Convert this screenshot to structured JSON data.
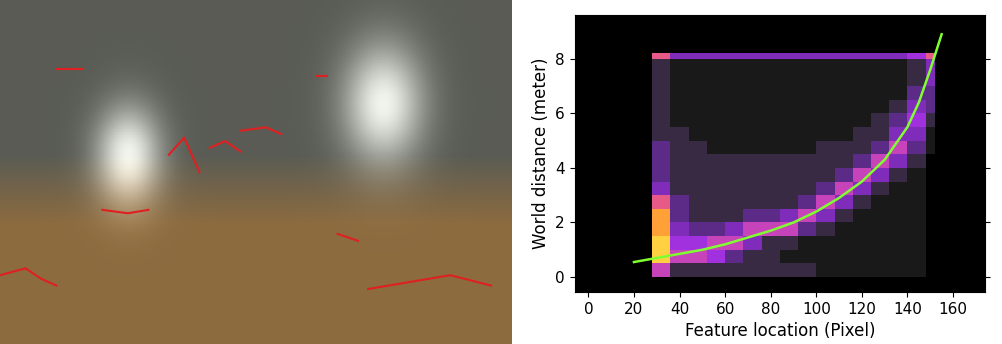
{
  "chart_data": {
    "type": "heatmap",
    "xlabel": "Feature location (Pixel)",
    "ylabel": "World distance (meter)",
    "xlim": [
      -6,
      174
    ],
    "ylim": [
      -0.55,
      9.6
    ],
    "xticks": [
      0,
      20,
      40,
      60,
      80,
      100,
      120,
      140,
      160
    ],
    "yticks": [
      0,
      2,
      4,
      6,
      8
    ],
    "x_edges": [
      28,
      36,
      44,
      52,
      60,
      68,
      76,
      84,
      92,
      100,
      108,
      116,
      124,
      132,
      140,
      148,
      152
    ],
    "y_edges": [
      0,
      0.5,
      1,
      1.5,
      2,
      2.5,
      3,
      3.5,
      4,
      4.5,
      5,
      5.5,
      6,
      6.5,
      7,
      7.5,
      8,
      8.2
    ],
    "cells": [
      [
        6,
        2,
        2,
        2,
        2,
        2,
        2,
        2,
        2,
        1,
        1,
        1,
        1,
        1,
        1,
        0
      ],
      [
        10,
        6,
        6,
        5,
        3,
        2,
        2,
        1,
        1,
        1,
        1,
        1,
        1,
        1,
        1,
        0
      ],
      [
        10,
        5,
        5,
        6,
        6,
        4,
        2,
        2,
        1,
        1,
        1,
        1,
        1,
        1,
        1,
        0
      ],
      [
        9,
        4,
        3,
        3,
        4,
        6,
        6,
        6,
        3,
        2,
        1,
        1,
        1,
        1,
        1,
        0
      ],
      [
        9,
        3,
        2,
        2,
        2,
        3,
        3,
        4,
        6,
        4,
        2,
        1,
        1,
        1,
        1,
        0
      ],
      [
        7,
        3,
        2,
        2,
        2,
        2,
        2,
        2,
        3,
        6,
        4,
        2,
        1,
        1,
        1,
        0
      ],
      [
        4,
        2,
        2,
        2,
        2,
        2,
        2,
        2,
        2,
        3,
        6,
        4,
        2,
        1,
        1,
        0
      ],
      [
        3,
        2,
        2,
        2,
        2,
        2,
        2,
        2,
        2,
        2,
        3,
        6,
        4,
        2,
        1,
        0
      ],
      [
        3,
        2,
        2,
        2,
        2,
        2,
        2,
        2,
        2,
        2,
        2,
        3,
        6,
        4,
        2,
        0
      ],
      [
        3,
        2,
        2,
        1,
        1,
        1,
        1,
        1,
        1,
        2,
        2,
        2,
        3,
        6,
        3,
        1
      ],
      [
        2,
        2,
        1,
        1,
        1,
        1,
        1,
        1,
        1,
        1,
        1,
        2,
        2,
        4,
        4,
        1
      ],
      [
        2,
        1,
        1,
        1,
        1,
        1,
        1,
        1,
        1,
        1,
        1,
        1,
        2,
        3,
        5,
        2
      ],
      [
        2,
        1,
        1,
        1,
        1,
        1,
        1,
        1,
        1,
        1,
        1,
        1,
        1,
        2,
        4,
        3
      ],
      [
        2,
        1,
        1,
        1,
        1,
        1,
        1,
        1,
        1,
        1,
        1,
        1,
        1,
        1,
        3,
        3
      ],
      [
        2,
        1,
        1,
        1,
        1,
        1,
        1,
        1,
        1,
        1,
        1,
        1,
        1,
        1,
        2,
        4
      ],
      [
        2,
        1,
        1,
        1,
        1,
        1,
        1,
        1,
        1,
        1,
        1,
        1,
        1,
        1,
        2,
        4
      ],
      [
        7,
        4,
        4,
        4,
        4,
        4,
        4,
        4,
        4,
        4,
        4,
        4,
        4,
        4,
        5,
        7
      ]
    ],
    "series": [
      {
        "type": "line",
        "color": "#80ff30",
        "x": [
          20,
          30,
          40,
          50,
          60,
          70,
          80,
          90,
          100,
          110,
          120,
          130,
          140,
          145,
          150,
          155
        ],
        "values": [
          0.55,
          0.7,
          0.85,
          1.0,
          1.2,
          1.45,
          1.7,
          2.0,
          2.4,
          2.9,
          3.5,
          4.3,
          5.5,
          6.4,
          7.6,
          8.9
        ]
      }
    ]
  }
}
